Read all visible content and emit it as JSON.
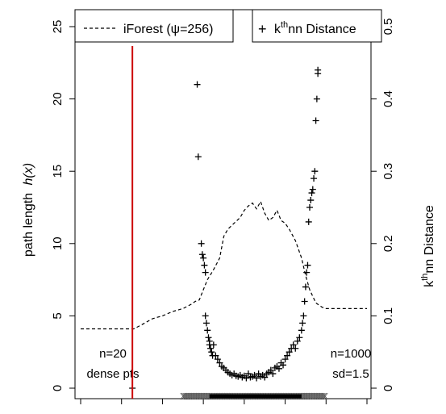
{
  "chart_data": {
    "type": "line",
    "x_range": [
      0,
      14
    ],
    "left_axis": {
      "label": "path length",
      "label_expr": "h(x)",
      "ylim": [
        0,
        25
      ],
      "ticks": [
        0,
        5,
        10,
        15,
        20,
        25
      ]
    },
    "right_axis": {
      "label_sup": "th",
      "label_prefix": "k",
      "label_suffix": "nn Distance",
      "ylim": [
        0,
        0.5
      ],
      "ticks": [
        0,
        0.1,
        0.2,
        0.3,
        0.4,
        0.5
      ]
    },
    "legend": [
      {
        "name": "iForest (ψ=256)",
        "style": "dashed-line"
      },
      {
        "name": "nn Distance",
        "prefix": "k",
        "sup": "th",
        "style": "plus-marker"
      }
    ],
    "annotations": {
      "left_n": "n=20",
      "left_desc": "dense pts",
      "right_n": "n=1000",
      "right_desc": "sd=1.5"
    },
    "red_line_x": 2.53,
    "series": [
      {
        "name": "iForest (ψ=256)",
        "style": "dashed",
        "axis": "left",
        "x": [
          0,
          2.2,
          2.4,
          2.6,
          3.0,
          3.5,
          4.0,
          4.5,
          5.0,
          5.4,
          5.6,
          5.8,
          6.0,
          6.2,
          6.5,
          6.8,
          7.0,
          7.2,
          7.5,
          7.8,
          8.0,
          8.2,
          8.4,
          8.6,
          8.8,
          9.0,
          9.2,
          9.4,
          9.6,
          9.8,
          10.0,
          10.2,
          10.5,
          10.8,
          11.0,
          11.2,
          11.5,
          11.8,
          12.0,
          12.5,
          13.0,
          13.5,
          14.0
        ],
        "y": [
          4.1,
          4.1,
          4.1,
          4.1,
          4.4,
          4.8,
          5.0,
          5.3,
          5.5,
          5.8,
          6.0,
          6.1,
          6.8,
          7.5,
          8.2,
          9.0,
          10.5,
          11.0,
          11.4,
          11.8,
          12.3,
          12.6,
          12.8,
          12.4,
          12.9,
          12.1,
          11.6,
          11.8,
          12.3,
          11.6,
          11.4,
          11.0,
          10.2,
          9.0,
          7.8,
          6.8,
          5.9,
          5.6,
          5.5,
          5.5,
          5.5,
          5.5,
          5.5
        ]
      },
      {
        "name": "nn Distance",
        "style": "plus",
        "axis": "right",
        "x": [
          2.53,
          5.7,
          5.75,
          5.9,
          5.95,
          6.0,
          6.05,
          6.1,
          6.1,
          6.15,
          6.2,
          6.25,
          6.3,
          6.3,
          6.35,
          6.4,
          6.45,
          6.5,
          6.6,
          6.7,
          6.8,
          6.9,
          7.0,
          7.1,
          7.2,
          7.3,
          7.4,
          7.5,
          7.6,
          7.7,
          7.8,
          7.9,
          8.0,
          8.1,
          8.2,
          8.3,
          8.4,
          8.5,
          8.6,
          8.7,
          8.8,
          8.9,
          9.0,
          9.1,
          9.2,
          9.3,
          9.4,
          9.5,
          9.6,
          9.7,
          9.8,
          9.9,
          10.0,
          10.1,
          10.2,
          10.3,
          10.4,
          10.5,
          10.6,
          10.7,
          10.8,
          10.85,
          10.9,
          10.95,
          11.0,
          11.05,
          11.1,
          11.15,
          11.2,
          11.25,
          11.3,
          11.35,
          11.4,
          11.45,
          11.5,
          11.55,
          11.6,
          11.6
        ],
        "y": [
          0.0,
          0.42,
          0.32,
          0.2,
          0.185,
          0.18,
          0.17,
          0.16,
          0.1,
          0.09,
          0.08,
          0.07,
          0.065,
          0.06,
          0.055,
          0.05,
          0.045,
          0.06,
          0.045,
          0.04,
          0.035,
          0.03,
          0.028,
          0.025,
          0.022,
          0.02,
          0.018,
          0.02,
          0.017,
          0.016,
          0.018,
          0.015,
          0.017,
          0.014,
          0.02,
          0.015,
          0.016,
          0.018,
          0.014,
          0.02,
          0.016,
          0.018,
          0.015,
          0.02,
          0.022,
          0.025,
          0.02,
          0.028,
          0.03,
          0.027,
          0.035,
          0.032,
          0.04,
          0.045,
          0.05,
          0.055,
          0.06,
          0.055,
          0.065,
          0.07,
          0.08,
          0.09,
          0.1,
          0.12,
          0.14,
          0.16,
          0.17,
          0.23,
          0.25,
          0.26,
          0.27,
          0.275,
          0.29,
          0.3,
          0.37,
          0.4,
          0.435,
          0.44
        ]
      }
    ],
    "rug": {
      "x_dense_start": 5.0,
      "x_dense_end": 12.0
    }
  },
  "colors": {
    "red_line": "#cc0000",
    "axis": "#000000"
  }
}
